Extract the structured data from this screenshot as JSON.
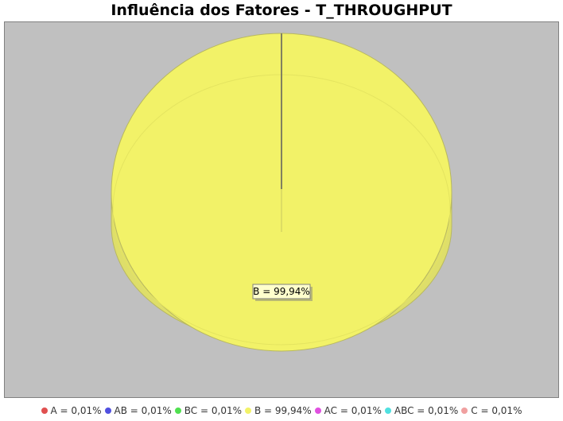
{
  "title": "Influência dos Fatores - T_THROUGHPUT",
  "colors": {
    "plot_background": "#c0c0c0",
    "slice_B": "#f2f268",
    "slice_B_side": "#dede6a",
    "label_background": "#ffffcc"
  },
  "chart_data": {
    "type": "pie",
    "style": "3d",
    "slices": [
      {
        "label": "A",
        "value": 0.01,
        "text": "A = 0,01%",
        "color": "#e05050"
      },
      {
        "label": "AB",
        "value": 0.01,
        "text": "AB = 0,01%",
        "color": "#5050e0"
      },
      {
        "label": "BC",
        "value": 0.01,
        "text": "BC = 0,01%",
        "color": "#50e050"
      },
      {
        "label": "B",
        "value": 99.94,
        "text": "B = 99,94%",
        "color": "#f2f268"
      },
      {
        "label": "AC",
        "value": 0.01,
        "text": "AC = 0,01%",
        "color": "#e050e0"
      },
      {
        "label": "ABC",
        "value": 0.01,
        "text": "ABC = 0,01%",
        "color": "#50e0e0"
      },
      {
        "label": "C",
        "value": 0.01,
        "text": "C = 0,01%",
        "color": "#f0a0a0"
      }
    ],
    "slice_label": "B = 99,94%",
    "legend_position": "bottom"
  }
}
